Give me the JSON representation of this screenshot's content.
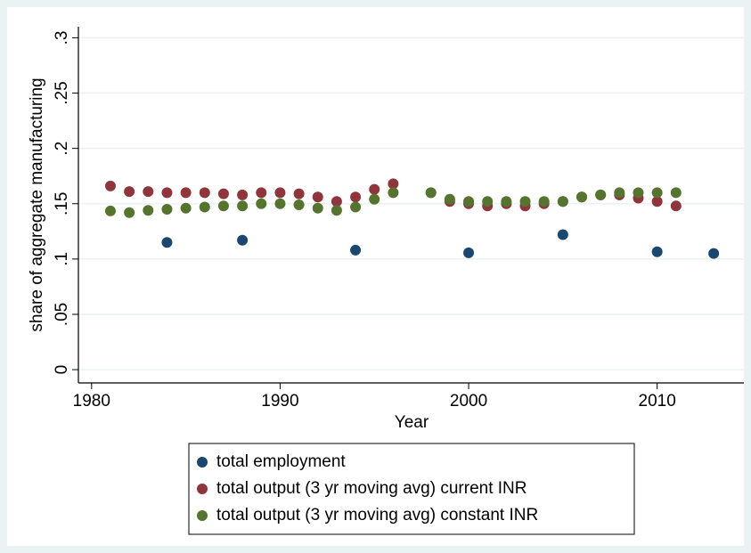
{
  "chart_data": {
    "type": "scatter",
    "x_label": "Year",
    "y_label": "share of aggregate manufacturing",
    "xlim": [
      1979.3,
      2014.6
    ],
    "xticks": [
      1980,
      1990,
      2000,
      2010
    ],
    "ylim": [
      -0.012,
      0.31
    ],
    "yticks": [
      0,
      {
        "value": 0.05,
        "label": ".05"
      },
      {
        "value": 0.1,
        "label": ".1"
      },
      {
        "value": 0.15,
        "label": ".15"
      },
      {
        "value": 0.2,
        "label": ".2"
      },
      {
        "value": 0.25,
        "label": ".25"
      },
      {
        "value": 0.3,
        "label": ".3"
      }
    ],
    "grid": true,
    "legend": "bottom",
    "series": [
      {
        "name": "total employment",
        "color": "#1a476f",
        "x": [
          1984,
          1988,
          1994,
          2000,
          2005,
          2010,
          2013
        ],
        "values": [
          0.115,
          0.117,
          0.108,
          0.1056,
          0.122,
          0.1065,
          0.105
        ]
      },
      {
        "name": "total output (3 yr moving avg) current INR",
        "color": "#90353b",
        "x": [
          1981,
          1982,
          1983,
          1984,
          1985,
          1986,
          1987,
          1988,
          1989,
          1990,
          1991,
          1992,
          1993,
          1994,
          1995,
          1996,
          1998,
          1999,
          2000,
          2001,
          2002,
          2003,
          2004,
          2005,
          2006,
          2007,
          2008,
          2009,
          2010,
          2011
        ],
        "values": [
          0.166,
          0.161,
          0.161,
          0.16,
          0.16,
          0.16,
          0.159,
          0.158,
          0.16,
          0.16,
          0.159,
          0.156,
          0.152,
          0.156,
          0.163,
          0.168,
          0.16,
          0.152,
          0.15,
          0.148,
          0.15,
          0.148,
          0.15,
          0.152,
          0.156,
          0.158,
          0.158,
          0.155,
          0.152,
          0.148
        ]
      },
      {
        "name": "total output (3 yr moving avg) constant INR",
        "color": "#55752f",
        "x": [
          1981,
          1982,
          1983,
          1984,
          1985,
          1986,
          1987,
          1988,
          1989,
          1990,
          1991,
          1992,
          1993,
          1994,
          1995,
          1996,
          1998,
          1999,
          2000,
          2001,
          2002,
          2003,
          2004,
          2005,
          2006,
          2007,
          2008,
          2009,
          2010,
          2011
        ],
        "values": [
          0.1435,
          0.142,
          0.144,
          0.145,
          0.146,
          0.147,
          0.148,
          0.148,
          0.15,
          0.15,
          0.149,
          0.146,
          0.144,
          0.147,
          0.154,
          0.16,
          0.16,
          0.154,
          0.152,
          0.152,
          0.152,
          0.152,
          0.152,
          0.152,
          0.156,
          0.158,
          0.16,
          0.16,
          0.16,
          0.16
        ]
      }
    ]
  }
}
